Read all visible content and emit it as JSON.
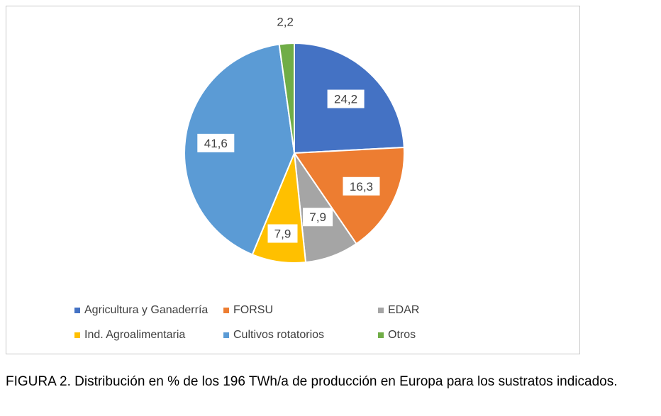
{
  "chart_data": {
    "type": "pie",
    "slices": [
      {
        "label": "Agricultura y Ganaderría",
        "value": 24.2,
        "display": "24,2",
        "color": "#4472C4"
      },
      {
        "label": "FORSU",
        "value": 16.3,
        "display": "16,3",
        "color": "#ED7D31"
      },
      {
        "label": "EDAR",
        "value": 7.9,
        "display": "7,9",
        "color": "#A5A5A5"
      },
      {
        "label": "Ind. Agroalimentaria",
        "value": 7.9,
        "display": "7,9",
        "color": "#FFC000"
      },
      {
        "label": "Cultivos rotatorios",
        "value": 41.6,
        "display": "41,6",
        "color": "#5B9BD5"
      },
      {
        "label": "Otros",
        "value": 2.2,
        "display": "2,2",
        "color": "#70AD47"
      }
    ],
    "legend_position": "bottom"
  },
  "caption": "FIGURA 2.  Distribución en % de los 196 TWh/a de producción en Europa para los sustratos indicados."
}
